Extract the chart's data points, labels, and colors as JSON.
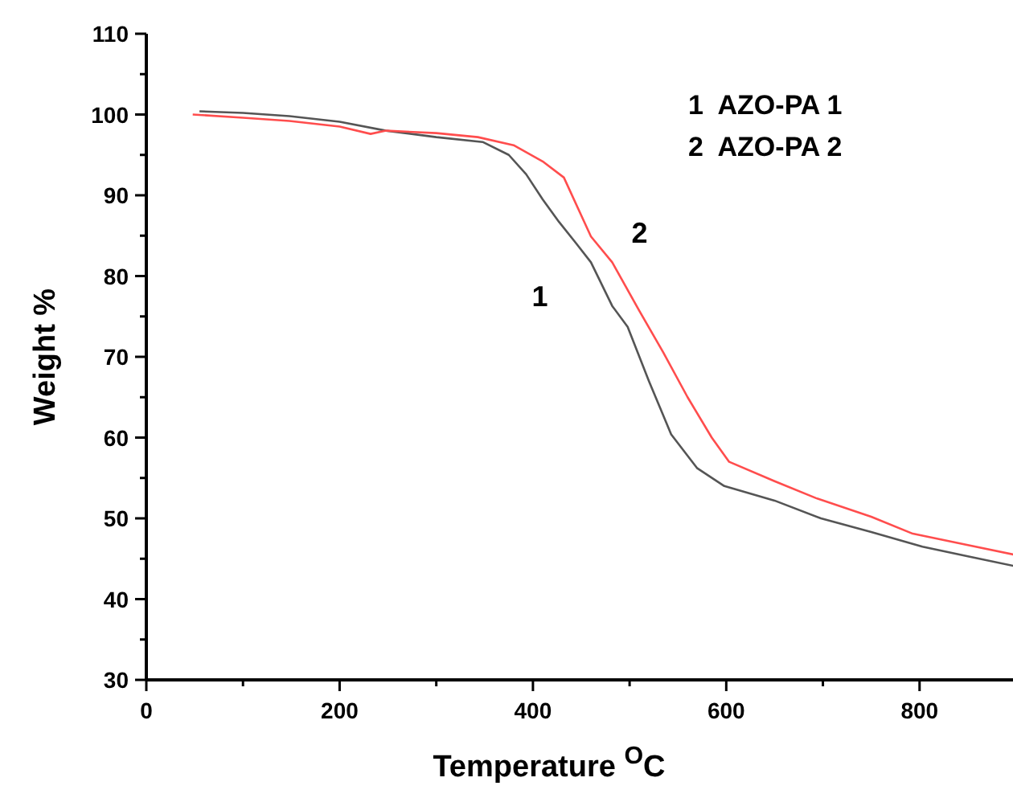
{
  "chart_data": {
    "type": "line",
    "xlabel": "Temperature $^{O}$C",
    "ylabel": "Weight %",
    "xlim": [
      0,
      900
    ],
    "xticks": [
      0,
      {
        "value": 100,
        "label": null
      },
      200,
      {
        "value": 300,
        "label": null
      },
      400,
      {
        "value": 500,
        "label": null
      },
      600,
      {
        "value": 700,
        "label": null
      },
      800,
      {
        "value": 900,
        "label": null
      }
    ],
    "ylim": [
      30,
      110
    ],
    "yticks": [
      30,
      {
        "value": 35,
        "label": null
      },
      40,
      {
        "value": 45,
        "label": null
      },
      50,
      {
        "value": 55,
        "label": null
      },
      60,
      {
        "value": 65,
        "label": null
      },
      70,
      {
        "value": 75,
        "label": null
      },
      80,
      {
        "value": 85,
        "label": null
      },
      90,
      {
        "value": 95,
        "label": null
      },
      100,
      {
        "value": 105,
        "label": null
      },
      110
    ],
    "grid": false,
    "marker": "none",
    "line_style": "solid",
    "series": [
      {
        "name": "1",
        "color": "#555555",
        "x": [
          55,
          100,
          148,
          200,
          248,
          300,
          348,
          375,
          393,
          410,
          427,
          445,
          460,
          482,
          498,
          520,
          543,
          570,
          598,
          650,
          698,
          750,
          803,
          850,
          898
        ],
        "values": [
          100.4,
          100.2,
          99.8,
          99.1,
          98,
          97.2,
          96.6,
          95,
          92.6,
          89.5,
          86.7,
          84,
          81.7,
          76.3,
          73.7,
          67,
          60.4,
          56.2,
          54,
          52.2,
          50,
          48.3,
          46.5,
          45.3,
          44.1
        ]
      },
      {
        "name": "2",
        "color": "#ff4d4d",
        "x": [
          48,
          100,
          148,
          200,
          232,
          248,
          300,
          343,
          380,
          410,
          432,
          460,
          482,
          510,
          535,
          560,
          585,
          603,
          650,
          693,
          750,
          793,
          850,
          898
        ],
        "values": [
          100,
          99.6,
          99.2,
          98.5,
          97.6,
          98,
          97.7,
          97.2,
          96.2,
          94.2,
          92.2,
          84.9,
          81.7,
          75.7,
          70.5,
          65,
          60,
          57,
          54.6,
          52.5,
          50.2,
          48.1,
          46.7,
          45.5
        ]
      }
    ],
    "annotations": [
      "1  AZO-PA 1",
      "2  AZO-PA 2"
    ]
  }
}
